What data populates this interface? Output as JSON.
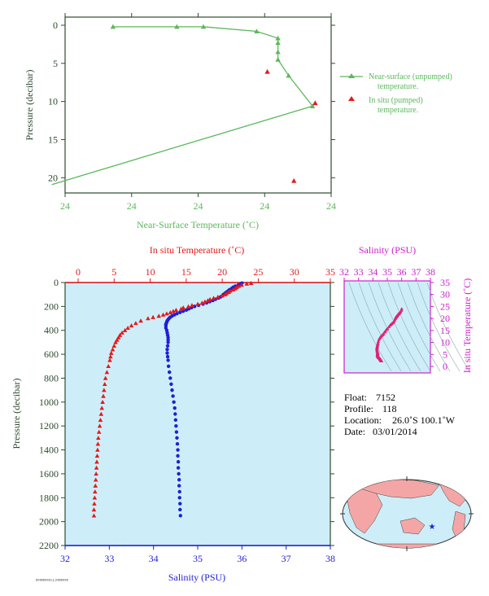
{
  "colors": {
    "green": "#5cb85c",
    "axis_green": "#2e4a2e",
    "red": "#e41a1c",
    "blue": "#1f1fd6",
    "magenta": "#cc22cc",
    "panel_bg": "#cdeef8",
    "land": "#f4a6a6",
    "ocean": "#cdeef8"
  },
  "chart_data": [
    {
      "id": "near-surface",
      "type": "line",
      "xlabel": "Near-Surface Temperature (˚C)",
      "ylabel": "Pressure (decibar)",
      "x_tick_labels": [
        "24",
        "24",
        "24",
        "24",
        "24"
      ],
      "xlim": [
        23.0,
        24.0
      ],
      "ylim": [
        0,
        22
      ],
      "y_ticks": [
        0,
        5,
        10,
        15,
        20
      ],
      "y_inverted": true,
      "series": [
        {
          "name": "Near-surface (unpumped) temperature.",
          "marker": "triangle",
          "line": true,
          "color": "#5cb85c",
          "x": [
            23.18,
            23.42,
            23.52,
            23.72,
            23.8,
            23.8,
            23.8,
            23.8,
            23.84,
            23.93,
            22.95
          ],
          "y": [
            0.2,
            0.2,
            0.2,
            0.8,
            1.7,
            2.3,
            3.5,
            4.5,
            6.6,
            10.6,
            20.9
          ]
        },
        {
          "name": "In situ (pumped) temperature.",
          "marker": "triangle",
          "line": false,
          "color": "#e41a1c",
          "x": [
            23.76,
            23.94,
            23.86
          ],
          "y": [
            6.1,
            10.2,
            20.4
          ]
        }
      ],
      "legend": [
        "Near-surface (unpumped) temperature.",
        "In situ (pumped) temperature."
      ],
      "legend_position": "right"
    },
    {
      "id": "profile",
      "type": "scatter",
      "xlabel": "Salinity (PSU)",
      "x2label": "In situ Temperature (˚C)",
      "ylabel": "Pressure (decibar)",
      "xlim": [
        32,
        38
      ],
      "x2lim": [
        0,
        35
      ],
      "ylim": [
        0,
        2200
      ],
      "y_ticks": [
        0,
        200,
        400,
        600,
        800,
        1000,
        1200,
        1400,
        1600,
        1800,
        2000,
        2200
      ],
      "x_ticks": [
        32,
        33,
        34,
        35,
        36,
        37,
        38
      ],
      "x2_ticks": [
        0,
        5,
        10,
        15,
        20,
        25,
        30,
        35
      ],
      "y_inverted": true,
      "series": [
        {
          "name": "In situ Temperature",
          "color": "#e41a1c",
          "marker": "triangle",
          "pressure": [
            5,
            10,
            20,
            30,
            40,
            50,
            60,
            70,
            80,
            90,
            100,
            110,
            120,
            130,
            140,
            150,
            160,
            170,
            180,
            190,
            200,
            210,
            220,
            230,
            240,
            250,
            260,
            270,
            280,
            290,
            300,
            320,
            340,
            360,
            380,
            400,
            420,
            440,
            460,
            480,
            500,
            530,
            560,
            590,
            620,
            650,
            700,
            750,
            800,
            850,
            900,
            950,
            1000,
            1050,
            1100,
            1150,
            1200,
            1250,
            1300,
            1350,
            1400,
            1450,
            1500,
            1550,
            1600,
            1650,
            1700,
            1750,
            1800,
            1850,
            1900,
            1950
          ],
          "values": [
            24.0,
            23.4,
            22.7,
            22.3,
            22.0,
            21.8,
            21.5,
            21.1,
            20.9,
            20.6,
            20.4,
            20.0,
            19.4,
            18.8,
            18.3,
            18.0,
            17.6,
            17.2,
            16.6,
            15.8,
            15.3,
            14.6,
            14.3,
            13.6,
            13.2,
            12.8,
            12.3,
            11.8,
            11.2,
            10.4,
            9.7,
            8.7,
            8.0,
            7.4,
            6.9,
            6.5,
            6.1,
            5.8,
            5.6,
            5.4,
            5.2,
            5.0,
            4.8,
            4.6,
            4.5,
            4.4,
            4.2,
            4.0,
            3.8,
            3.7,
            3.6,
            3.5,
            3.4,
            3.3,
            3.2,
            3.1,
            3.0,
            2.9,
            2.8,
            2.75,
            2.7,
            2.65,
            2.6,
            2.55,
            2.5,
            2.45,
            2.4,
            2.35,
            2.3,
            2.25,
            2.2,
            2.2
          ]
        },
        {
          "name": "Salinity",
          "color": "#1f1fd6",
          "marker": "dot",
          "pressure": [
            5,
            10,
            20,
            30,
            40,
            50,
            60,
            70,
            80,
            90,
            100,
            110,
            120,
            130,
            140,
            150,
            160,
            170,
            180,
            190,
            200,
            210,
            220,
            230,
            240,
            250,
            260,
            270,
            280,
            290,
            300,
            310,
            320,
            330,
            340,
            350,
            360,
            380,
            400,
            420,
            440,
            460,
            480,
            500,
            530,
            560,
            590,
            620,
            650,
            700,
            750,
            800,
            850,
            900,
            950,
            1000,
            1050,
            1100,
            1150,
            1200,
            1250,
            1300,
            1350,
            1400,
            1450,
            1500,
            1550,
            1600,
            1650,
            1700,
            1750,
            1800,
            1850,
            1900,
            1950
          ],
          "values": [
            36.0,
            35.98,
            35.92,
            35.85,
            35.8,
            35.77,
            35.72,
            35.69,
            35.65,
            35.62,
            35.58,
            35.56,
            35.52,
            35.47,
            35.4,
            35.34,
            35.27,
            35.2,
            35.12,
            35.02,
            34.93,
            34.86,
            34.8,
            34.74,
            34.67,
            34.6,
            34.53,
            34.47,
            34.42,
            34.38,
            34.35,
            34.33,
            34.31,
            34.3,
            34.29,
            34.28,
            34.28,
            34.28,
            34.3,
            34.31,
            34.32,
            34.33,
            34.33,
            34.33,
            34.32,
            34.31,
            34.31,
            34.32,
            34.33,
            34.34,
            34.36,
            34.38,
            34.4,
            34.42,
            34.44,
            34.46,
            34.48,
            34.49,
            34.5,
            34.51,
            34.52,
            34.53,
            34.54,
            34.55,
            34.55,
            34.56,
            34.56,
            34.57,
            34.58,
            34.58,
            34.59,
            34.59,
            34.6,
            34.6,
            34.61
          ]
        }
      ]
    },
    {
      "id": "ts-diagram",
      "type": "scatter",
      "xlabel": "Salinity (PSU)",
      "ylabel": "In situ Temperature (˚C)",
      "xlim": [
        32,
        38
      ],
      "ylim": [
        0,
        35
      ],
      "x_ticks": [
        32,
        33,
        34,
        35,
        36,
        37,
        38
      ],
      "y_ticks": [
        0,
        5,
        10,
        15,
        20,
        25,
        30,
        35
      ]
    }
  ],
  "info": {
    "float_label": "Float:",
    "float_value": "7152",
    "profile_label": "Profile:",
    "profile_value": "118",
    "location_label": "Location:",
    "location_value": "26.0˚S 100.1˚W",
    "date_label": "Date:",
    "date_value": "03/01/2014"
  },
  "footer_note": "PPPPPPP.PLL.PPPPPPP",
  "map": {
    "float_marker": "star"
  }
}
